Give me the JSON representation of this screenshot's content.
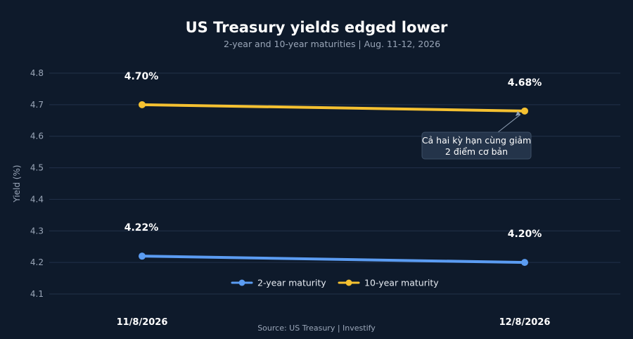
{
  "chart_data": {
    "type": "line",
    "title": "US Treasury yields edged lower",
    "subtitle": "2-year and 10-year maturities | Aug. 11-12, 2026",
    "x": [
      "11/8/2026",
      "12/8/2026"
    ],
    "ylabel": "Yield (%)",
    "ylim": [
      4.05,
      4.82
    ],
    "yticks": [
      "4.1",
      "4.2",
      "4.3",
      "4.4",
      "4.5",
      "4.6",
      "4.7",
      "4.8"
    ],
    "grid": true,
    "legend_position": "bottom-center",
    "series": [
      {
        "name": "2-year maturity",
        "values": [
          4.22,
          4.2
        ],
        "labels": [
          "4.22%",
          "4.20%"
        ],
        "color": "#5b9cf2"
      },
      {
        "name": "10-year maturity",
        "values": [
          4.7,
          4.68
        ],
        "labels": [
          "4.70%",
          "4.68%"
        ],
        "color": "#f5c131"
      }
    ],
    "annotation": {
      "lines": [
        "Cả hai kỳ hạn cùng giảm",
        "2 điểm cơ bản"
      ],
      "series_index": 1,
      "point_index": 1
    },
    "source": "Source: US Treasury | Investify"
  }
}
